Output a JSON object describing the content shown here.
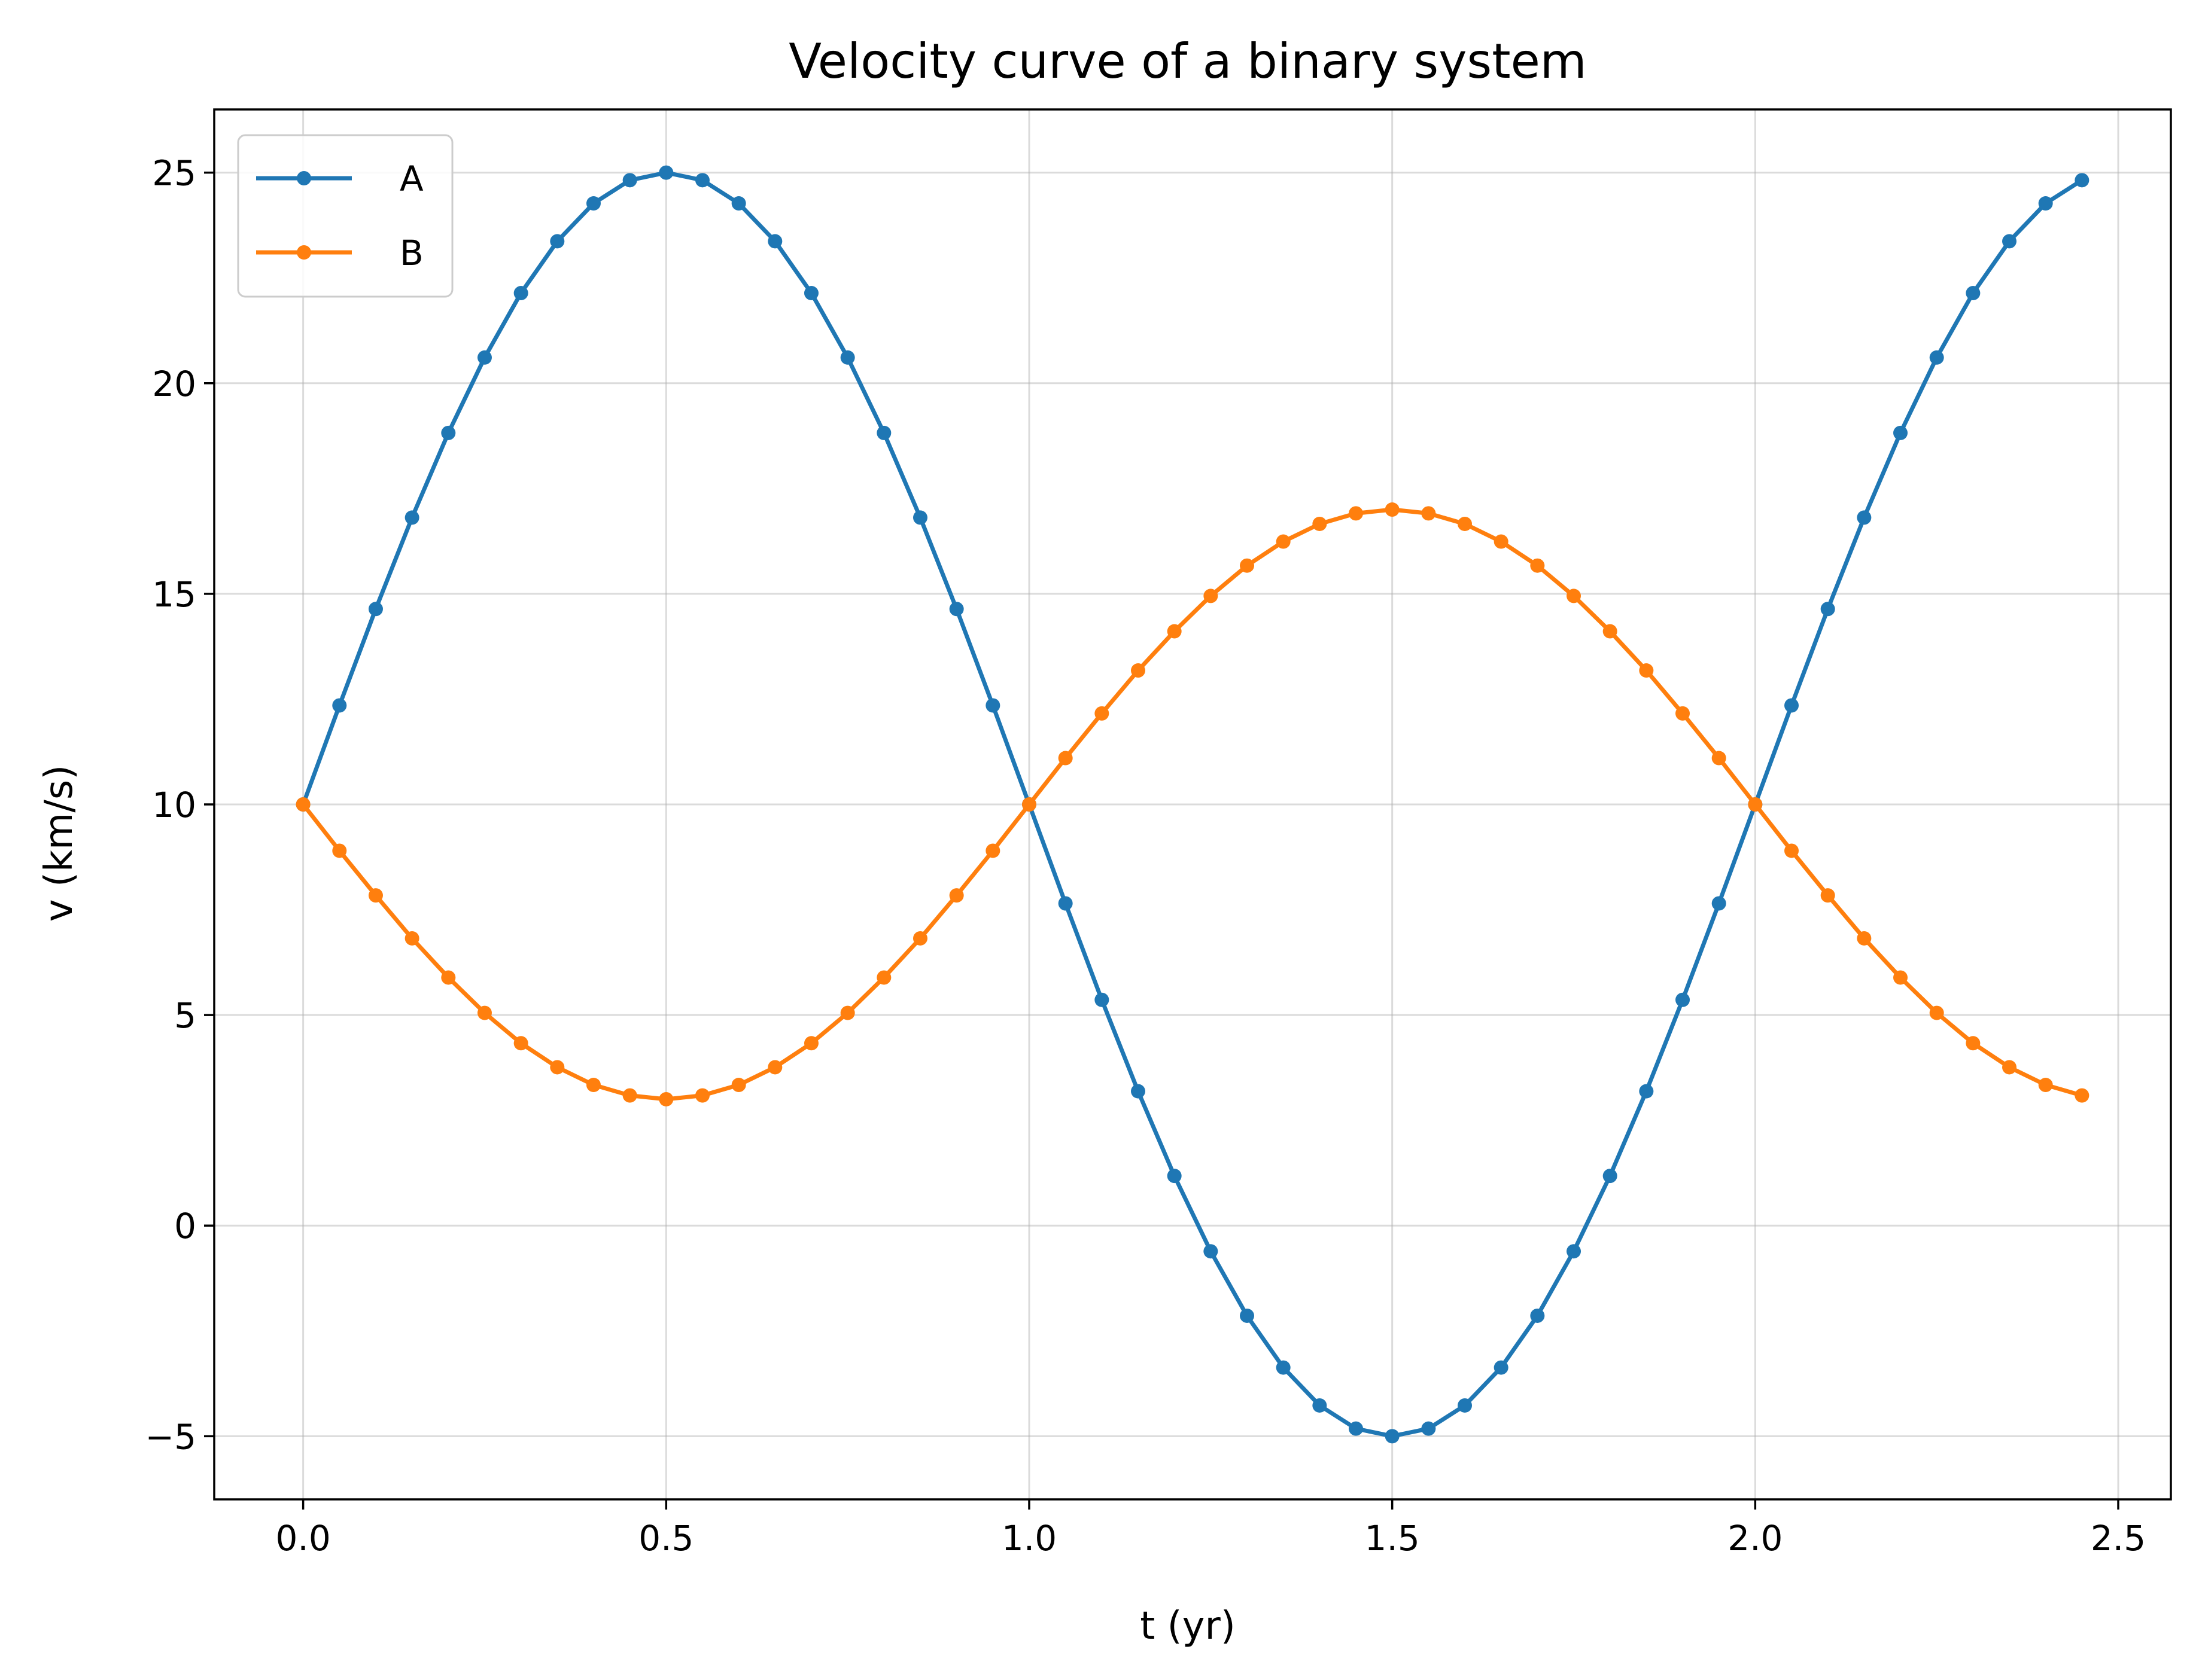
{
  "chart_data": {
    "type": "line",
    "title": "Velocity curve of a binary system",
    "xlabel": "t (yr)",
    "ylabel": "v (km/s)",
    "xlim": [
      -0.1225,
      2.5725
    ],
    "ylim": [
      -6.5,
      26.5
    ],
    "xticks": [
      0.0,
      0.5,
      1.0,
      1.5,
      2.0,
      2.5
    ],
    "xtick_labels": [
      "0.0",
      "0.5",
      "1.0",
      "1.5",
      "2.0",
      "2.5"
    ],
    "yticks": [
      -5,
      0,
      5,
      10,
      15,
      20,
      25
    ],
    "ytick_labels": [
      "−5",
      "0",
      "5",
      "10",
      "15",
      "20",
      "25"
    ],
    "grid": true,
    "legend_position": "upper-left",
    "x": [
      0.0,
      0.05,
      0.1,
      0.15,
      0.2,
      0.25,
      0.3,
      0.35,
      0.4,
      0.45,
      0.5,
      0.55,
      0.6,
      0.65,
      0.7,
      0.75,
      0.8,
      0.85,
      0.9,
      0.95,
      1.0,
      1.05,
      1.1,
      1.15,
      1.2,
      1.25,
      1.3,
      1.35,
      1.4,
      1.45,
      1.5,
      1.55,
      1.6,
      1.65,
      1.7,
      1.75,
      1.8,
      1.85,
      1.9,
      1.95,
      2.0,
      2.05,
      2.1,
      2.15,
      2.2,
      2.25,
      2.3,
      2.35,
      2.4,
      2.45
    ],
    "series": [
      {
        "name": "A",
        "color": "#1f77b4",
        "values": [
          10.0,
          12.35,
          14.64,
          16.81,
          18.82,
          20.61,
          22.14,
          23.37,
          24.27,
          24.82,
          25.0,
          24.82,
          24.27,
          23.37,
          22.14,
          20.61,
          18.82,
          16.81,
          14.64,
          12.35,
          10.0,
          7.65,
          5.36,
          3.19,
          1.18,
          -0.61,
          -2.14,
          -3.37,
          -4.27,
          -4.82,
          -5.0,
          -4.82,
          -4.27,
          -3.37,
          -2.14,
          -0.61,
          1.18,
          3.19,
          5.36,
          7.65,
          10.0,
          12.35,
          14.64,
          16.81,
          18.82,
          20.61,
          22.14,
          23.37,
          24.27,
          24.82
        ]
      },
      {
        "name": "B",
        "color": "#ff7f0e",
        "values": [
          10.0,
          8.9,
          7.84,
          6.82,
          5.89,
          5.05,
          4.33,
          3.76,
          3.34,
          3.09,
          3.0,
          3.09,
          3.34,
          3.76,
          4.33,
          5.05,
          5.89,
          6.82,
          7.84,
          8.9,
          10.0,
          11.1,
          12.16,
          13.18,
          14.11,
          14.95,
          15.67,
          16.24,
          16.66,
          16.91,
          17.0,
          16.91,
          16.66,
          16.24,
          15.67,
          14.95,
          14.11,
          13.18,
          12.16,
          11.1,
          10.0,
          8.9,
          7.84,
          6.82,
          5.89,
          5.05,
          4.33,
          3.76,
          3.34,
          3.09
        ]
      }
    ]
  }
}
